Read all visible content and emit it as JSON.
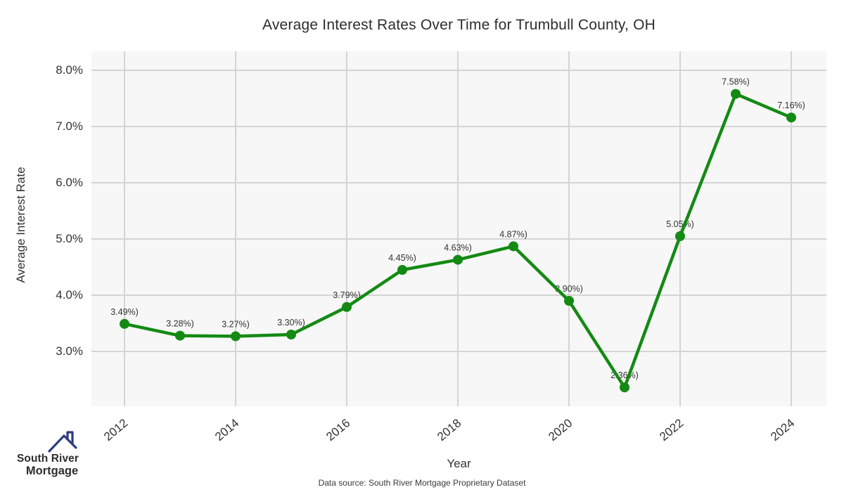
{
  "chart": {
    "title": "Average Interest Rates Over Time for Trumbull County, OH",
    "x_axis": {
      "title": "Year",
      "ticks": [
        2012,
        2014,
        2016,
        2018,
        2020,
        2022,
        2024
      ]
    },
    "y_axis": {
      "title": "Average Interest Rate",
      "ticks": [
        "8.0%",
        "7.0%",
        "6.0%",
        "5.0%",
        "4.0%",
        "3.0%"
      ],
      "tick_values": [
        8.0,
        7.0,
        6.0,
        5.0,
        4.0,
        3.0
      ]
    }
  },
  "chart_data": {
    "type": "line",
    "title": "Average Interest Rates Over Time for Trumbull County, OH",
    "xlabel": "Year",
    "ylabel": "Average Interest Rate",
    "x": [
      2012,
      2013,
      2014,
      2015,
      2016,
      2017,
      2018,
      2019,
      2020,
      2021,
      2022,
      2023,
      2024
    ],
    "values": [
      3.49,
      3.28,
      3.27,
      3.3,
      3.79,
      4.45,
      4.63,
      4.87,
      3.9,
      2.36,
      5.05,
      7.58,
      7.16
    ],
    "point_labels": [
      "3.49%)",
      "3.28%)",
      "3.27%)",
      "3.30%)",
      "3.79%)",
      "4.45%)",
      "4.63%)",
      "4.87%)",
      "3.90%)",
      "2.36%)",
      "5.05%)",
      "7.58%)",
      "7.16%)"
    ],
    "ylim": [
      2.0,
      8.3
    ],
    "xlim": [
      2011.4,
      2024.6
    ],
    "grid": "major x and y, light gray on light panel",
    "legend": "none",
    "marker": "filled circle",
    "line_color": "#148a14"
  },
  "footer": {
    "text": "Data source: South River Mortgage Proprietary Dataset"
  },
  "logo": {
    "line1": "South River",
    "line2": "Mortgage"
  },
  "colors": {
    "line": "#148a14",
    "panel_bg": "#f7f7f7",
    "grid": "#d4d4d4",
    "label_text": "#333333",
    "logo_blue": "#4a6db7",
    "logo_navy": "#2e3b80"
  }
}
